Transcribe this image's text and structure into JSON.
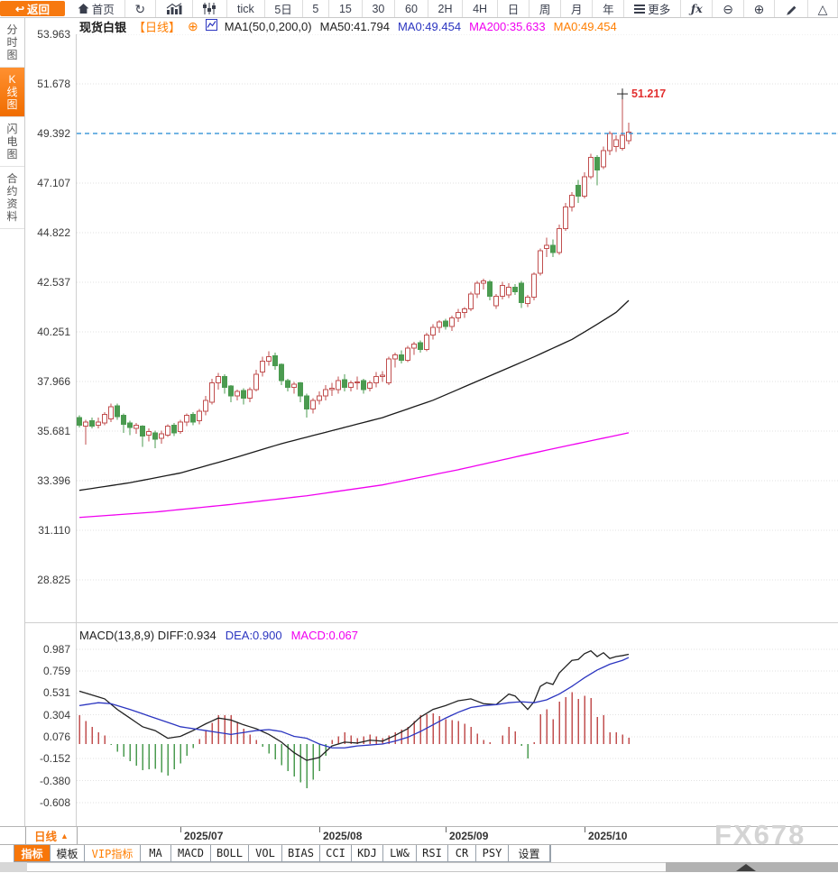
{
  "window": {
    "watermark": "FX678"
  },
  "colors": {
    "accent_orange": "#f7790f",
    "up_red": "#c14f4f",
    "down_green": "#4b9b50",
    "ma50_line": "#1a1a1a",
    "ma200_line": "#f000f0",
    "diff_line": "#222222",
    "dea_line": "#2b35c0",
    "price_line_blue": "#1e88d2",
    "high_label_red": "#e23030"
  },
  "toolbar": {
    "back_label": "返回",
    "home_label": "首页",
    "icon_buttons": [
      "refresh-icon",
      "bar-chart-icon",
      "sliders-icon"
    ],
    "period_buttons": [
      "tick",
      "5日",
      "5",
      "15",
      "30",
      "60",
      "2H",
      "4H",
      "日",
      "周",
      "月",
      "年"
    ],
    "more_label": "更多",
    "fx_label": "ƒx",
    "right_icon_buttons": [
      "zoom-out-icon",
      "zoom-in-icon",
      "pen-icon",
      "shapes-triangle-icon"
    ]
  },
  "sidebar": {
    "items": [
      {
        "label": "分时图",
        "key": "time-chart",
        "active": false
      },
      {
        "label": "K线图",
        "key": "kline-chart",
        "active": true
      },
      {
        "label": "闪电图",
        "key": "lightning-chart",
        "active": false
      },
      {
        "label": "合约资料",
        "key": "contract-info",
        "active": false
      }
    ]
  },
  "legend": {
    "symbol": "现货白银",
    "period_tag": "【日线】",
    "add_indicator_glyph": "⊕",
    "items": [
      {
        "text": "MA1(50,0,200,0)",
        "color": "#222222"
      },
      {
        "text": "MA50:41.794",
        "color": "#222222"
      },
      {
        "text": "MA0:49.454",
        "color": "#2b35c0"
      },
      {
        "text": "MA200:35.633",
        "color": "#f000f0"
      },
      {
        "text": "MA0:49.454",
        "color": "#ff7e00"
      }
    ]
  },
  "macd_panel": {
    "settings_glyph": "☀",
    "legend": [
      {
        "text": "MACD(13,8,9) DIFF:0.934",
        "color": "#222222"
      },
      {
        "text": "DEA:0.900",
        "color": "#2b35c0"
      },
      {
        "text": "MACD:0.067",
        "color": "#f000f0"
      }
    ]
  },
  "x_axis": {
    "period_button": "日线",
    "period_button_arrow": "▲"
  },
  "bottom_tabs": {
    "items": [
      {
        "label": "指标",
        "key": "indicators",
        "active": true
      },
      {
        "label": "模板",
        "key": "templates"
      },
      {
        "label": "VIP指标",
        "key": "vip-indicators",
        "vip": true
      },
      {
        "label": "MA",
        "key": "ma"
      },
      {
        "label": "MACD",
        "key": "macd"
      },
      {
        "label": "BOLL",
        "key": "boll"
      },
      {
        "label": "VOL",
        "key": "vol"
      },
      {
        "label": "BIAS",
        "key": "bias"
      },
      {
        "label": "CCI",
        "key": "cci"
      },
      {
        "label": "KDJ",
        "key": "kdj"
      },
      {
        "label": "LW&",
        "key": "lwr"
      },
      {
        "label": "RSI",
        "key": "rsi"
      },
      {
        "label": "CR",
        "key": "cr"
      },
      {
        "label": "PSY",
        "key": "psy"
      },
      {
        "label": "设置",
        "key": "settings"
      }
    ]
  },
  "chart_data": {
    "type": "candlestick",
    "title": "现货白银 日线",
    "y_axis_labels": [
      53.963,
      51.678,
      49.392,
      47.107,
      44.822,
      42.537,
      40.251,
      37.966,
      35.681,
      33.396,
      31.11,
      28.825
    ],
    "x_ticks": [
      {
        "label": "2025/07",
        "candle_index": 16
      },
      {
        "label": "2025/08",
        "candle_index": 38
      },
      {
        "label": "2025/09",
        "candle_index": 58
      },
      {
        "label": "2025/10",
        "candle_index": 80
      }
    ],
    "last_price_line": 49.392,
    "high_annotation": {
      "text": "51.217",
      "price": 51.217,
      "candle_index": 86
    },
    "candles_ohlc": [
      [
        36.3,
        36.4,
        35.85,
        35.95
      ],
      [
        35.9,
        36.2,
        35.05,
        36.1
      ],
      [
        36.15,
        36.3,
        35.8,
        35.9
      ],
      [
        35.95,
        36.3,
        35.8,
        36.1
      ],
      [
        36.05,
        36.55,
        35.95,
        36.45
      ],
      [
        36.25,
        36.95,
        36.1,
        36.8
      ],
      [
        36.85,
        36.95,
        36.2,
        36.35
      ],
      [
        36.4,
        36.5,
        35.6,
        36.0
      ],
      [
        36.05,
        36.15,
        35.5,
        35.85
      ],
      [
        35.8,
        36.05,
        35.55,
        35.95
      ],
      [
        35.9,
        35.95,
        34.95,
        35.45
      ],
      [
        35.5,
        35.8,
        35.2,
        35.65
      ],
      [
        35.6,
        35.7,
        34.9,
        35.3
      ],
      [
        35.35,
        35.7,
        35.1,
        35.55
      ],
      [
        35.5,
        36.0,
        35.4,
        35.9
      ],
      [
        35.95,
        36.05,
        35.45,
        35.6
      ],
      [
        35.65,
        36.2,
        35.55,
        36.1
      ],
      [
        36.1,
        36.5,
        35.9,
        36.4
      ],
      [
        36.45,
        36.55,
        35.95,
        36.1
      ],
      [
        36.15,
        36.7,
        36.0,
        36.6
      ],
      [
        36.6,
        37.3,
        36.4,
        37.1
      ],
      [
        37.0,
        38.1,
        36.9,
        37.9
      ],
      [
        37.9,
        38.35,
        37.6,
        38.2
      ],
      [
        38.2,
        38.3,
        37.4,
        37.7
      ],
      [
        37.75,
        37.8,
        37.0,
        37.3
      ],
      [
        37.3,
        37.6,
        37.1,
        37.5
      ],
      [
        37.55,
        37.65,
        36.9,
        37.2
      ],
      [
        37.2,
        37.7,
        37.0,
        37.6
      ],
      [
        37.6,
        38.5,
        37.5,
        38.3
      ],
      [
        38.4,
        39.1,
        38.2,
        38.9
      ],
      [
        38.9,
        39.35,
        38.7,
        39.1
      ],
      [
        39.15,
        39.3,
        38.5,
        38.7
      ],
      [
        38.75,
        38.8,
        37.8,
        38.0
      ],
      [
        38.0,
        38.1,
        37.5,
        37.7
      ],
      [
        37.7,
        37.95,
        37.4,
        37.85
      ],
      [
        37.9,
        37.95,
        37.0,
        37.3
      ],
      [
        37.3,
        37.4,
        36.3,
        36.7
      ],
      [
        36.7,
        37.2,
        36.5,
        37.1
      ],
      [
        37.1,
        37.5,
        36.9,
        37.3
      ],
      [
        37.3,
        37.8,
        37.1,
        37.6
      ],
      [
        37.6,
        37.9,
        37.3,
        37.65
      ],
      [
        37.6,
        38.2,
        37.4,
        38.0
      ],
      [
        38.05,
        38.3,
        37.5,
        37.7
      ],
      [
        37.7,
        38.0,
        37.5,
        37.9
      ],
      [
        37.9,
        38.2,
        37.6,
        37.95
      ],
      [
        38.0,
        38.1,
        37.4,
        37.6
      ],
      [
        37.65,
        38.0,
        37.5,
        37.9
      ],
      [
        37.9,
        38.4,
        37.7,
        38.2
      ],
      [
        38.2,
        38.45,
        37.95,
        38.25
      ],
      [
        37.9,
        39.1,
        37.8,
        39.0
      ],
      [
        39.0,
        39.3,
        38.6,
        39.2
      ],
      [
        39.2,
        39.4,
        38.8,
        38.95
      ],
      [
        38.95,
        39.6,
        38.85,
        39.5
      ],
      [
        39.5,
        39.8,
        39.2,
        39.7
      ],
      [
        39.75,
        39.85,
        39.3,
        39.45
      ],
      [
        39.45,
        40.2,
        39.35,
        40.1
      ],
      [
        40.1,
        40.6,
        39.9,
        40.45
      ],
      [
        40.45,
        40.8,
        40.2,
        40.7
      ],
      [
        40.75,
        40.85,
        40.35,
        40.5
      ],
      [
        40.5,
        41.0,
        40.3,
        40.9
      ],
      [
        40.9,
        41.3,
        40.7,
        41.15
      ],
      [
        41.15,
        41.4,
        40.9,
        41.3
      ],
      [
        41.3,
        42.1,
        41.2,
        42.0
      ],
      [
        42.0,
        42.6,
        41.8,
        42.5
      ],
      [
        42.5,
        42.7,
        42.2,
        42.6
      ],
      [
        42.55,
        42.65,
        41.7,
        41.9
      ],
      [
        41.45,
        42.0,
        41.3,
        41.9
      ],
      [
        41.9,
        42.55,
        41.75,
        42.4
      ],
      [
        41.95,
        42.5,
        41.8,
        42.3
      ],
      [
        42.3,
        42.45,
        41.95,
        42.1
      ],
      [
        42.5,
        42.6,
        41.35,
        41.6
      ],
      [
        41.55,
        41.95,
        41.4,
        41.85
      ],
      [
        41.85,
        43.0,
        41.7,
        42.9
      ],
      [
        42.95,
        44.1,
        42.85,
        44.0
      ],
      [
        44.1,
        44.6,
        43.7,
        44.25
      ],
      [
        44.25,
        44.5,
        43.7,
        43.9
      ],
      [
        43.9,
        45.2,
        43.8,
        45.0
      ],
      [
        45.0,
        46.2,
        44.9,
        46.0
      ],
      [
        46.0,
        46.7,
        45.8,
        46.55
      ],
      [
        47.0,
        47.25,
        46.2,
        46.5
      ],
      [
        46.5,
        47.6,
        46.4,
        47.4
      ],
      [
        47.4,
        48.45,
        47.3,
        48.3
      ],
      [
        48.3,
        48.4,
        47.0,
        47.7
      ],
      [
        47.85,
        48.8,
        47.75,
        48.6
      ],
      [
        48.6,
        49.5,
        48.4,
        49.4
      ],
      [
        48.8,
        49.3,
        48.55,
        49.1
      ],
      [
        48.7,
        51.217,
        48.6,
        49.3
      ],
      [
        49.05,
        49.9,
        48.9,
        49.454
      ]
    ],
    "ma50_waypoints": [
      [
        0,
        32.95
      ],
      [
        8,
        33.3
      ],
      [
        16,
        33.75
      ],
      [
        24,
        34.4
      ],
      [
        32,
        35.1
      ],
      [
        40,
        35.7
      ],
      [
        48,
        36.3
      ],
      [
        56,
        37.1
      ],
      [
        64,
        38.1
      ],
      [
        72,
        39.1
      ],
      [
        78,
        39.9
      ],
      [
        82,
        40.6
      ],
      [
        85,
        41.15
      ],
      [
        87,
        41.7
      ]
    ],
    "ma200_waypoints": [
      [
        0,
        31.7
      ],
      [
        12,
        31.95
      ],
      [
        24,
        32.3
      ],
      [
        36,
        32.7
      ],
      [
        48,
        33.2
      ],
      [
        60,
        33.9
      ],
      [
        70,
        34.55
      ],
      [
        78,
        35.05
      ],
      [
        87,
        35.6
      ]
    ],
    "macd": {
      "params": "13,8,9",
      "diff": 0.934,
      "dea": 0.9,
      "macd": 0.067,
      "y_axis_labels": [
        0.987,
        0.759,
        0.531,
        0.304,
        0.076,
        -0.152,
        -0.38,
        -0.608
      ],
      "diff_waypoints": [
        [
          0,
          0.55
        ],
        [
          2,
          0.51
        ],
        [
          4,
          0.47
        ],
        [
          6,
          0.36
        ],
        [
          8,
          0.27
        ],
        [
          10,
          0.18
        ],
        [
          12,
          0.14
        ],
        [
          14,
          0.06
        ],
        [
          16,
          0.08
        ],
        [
          18,
          0.14
        ],
        [
          20,
          0.21
        ],
        [
          22,
          0.27
        ],
        [
          24,
          0.25
        ],
        [
          26,
          0.2
        ],
        [
          28,
          0.16
        ],
        [
          30,
          0.1
        ],
        [
          32,
          0.02
        ],
        [
          34,
          -0.09
        ],
        [
          36,
          -0.17
        ],
        [
          38,
          -0.14
        ],
        [
          40,
          -0.02
        ],
        [
          42,
          0.02
        ],
        [
          44,
          0.01
        ],
        [
          46,
          0.04
        ],
        [
          48,
          0.03
        ],
        [
          50,
          0.09
        ],
        [
          52,
          0.16
        ],
        [
          54,
          0.28
        ],
        [
          56,
          0.36
        ],
        [
          58,
          0.4
        ],
        [
          60,
          0.45
        ],
        [
          62,
          0.47
        ],
        [
          64,
          0.42
        ],
        [
          66,
          0.41
        ],
        [
          68,
          0.52
        ],
        [
          69,
          0.5
        ],
        [
          71,
          0.36
        ],
        [
          72,
          0.44
        ],
        [
          73,
          0.6
        ],
        [
          74,
          0.64
        ],
        [
          75,
          0.62
        ],
        [
          76,
          0.74
        ],
        [
          78,
          0.87
        ],
        [
          79,
          0.88
        ],
        [
          80,
          0.94
        ],
        [
          81,
          0.97
        ],
        [
          82,
          0.91
        ],
        [
          83,
          0.95
        ],
        [
          84,
          0.89
        ],
        [
          85,
          0.91
        ],
        [
          86,
          0.92
        ],
        [
          87,
          0.934
        ]
      ],
      "dea_waypoints": [
        [
          0,
          0.4
        ],
        [
          3,
          0.43
        ],
        [
          5,
          0.42
        ],
        [
          8,
          0.36
        ],
        [
          12,
          0.27
        ],
        [
          16,
          0.18
        ],
        [
          20,
          0.14
        ],
        [
          24,
          0.1
        ],
        [
          26,
          0.12
        ],
        [
          28,
          0.14
        ],
        [
          30,
          0.15
        ],
        [
          32,
          0.13
        ],
        [
          34,
          0.08
        ],
        [
          36,
          0.06
        ],
        [
          38,
          0.0
        ],
        [
          40,
          -0.04
        ],
        [
          42,
          -0.04
        ],
        [
          44,
          -0.02
        ],
        [
          46,
          -0.01
        ],
        [
          48,
          0.0
        ],
        [
          50,
          0.03
        ],
        [
          52,
          0.07
        ],
        [
          54,
          0.13
        ],
        [
          56,
          0.2
        ],
        [
          58,
          0.27
        ],
        [
          60,
          0.33
        ],
        [
          62,
          0.38
        ],
        [
          64,
          0.4
        ],
        [
          66,
          0.41
        ],
        [
          68,
          0.43
        ],
        [
          70,
          0.44
        ],
        [
          72,
          0.43
        ],
        [
          74,
          0.46
        ],
        [
          76,
          0.52
        ],
        [
          78,
          0.6
        ],
        [
          80,
          0.69
        ],
        [
          82,
          0.77
        ],
        [
          84,
          0.83
        ],
        [
          86,
          0.87
        ],
        [
          87,
          0.9
        ]
      ],
      "histogram_rule": "2*(diff-dea)"
    }
  }
}
